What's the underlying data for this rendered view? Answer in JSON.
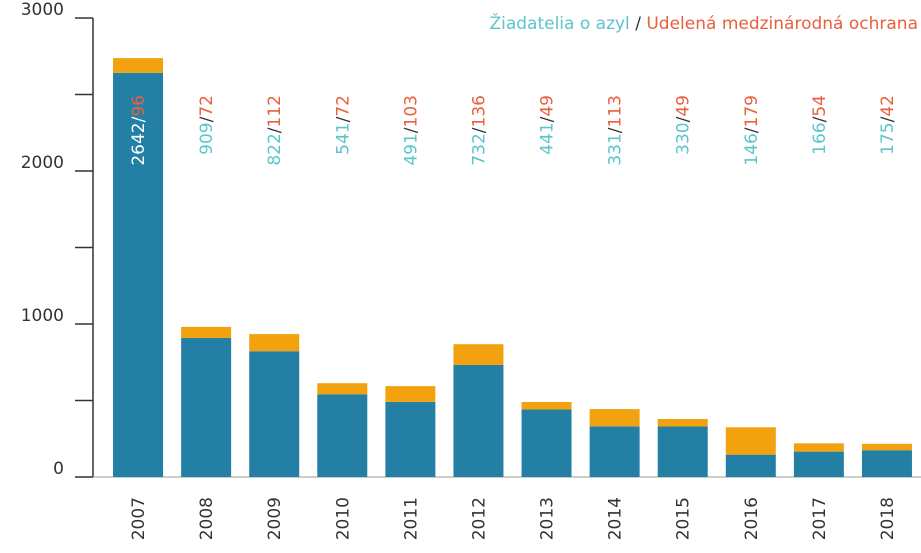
{
  "chart_data": {
    "type": "stacked_bar",
    "categories": [
      "2007",
      "2008",
      "2009",
      "2010",
      "2011",
      "2012",
      "2013",
      "2014",
      "2015",
      "2016",
      "2017",
      "2018"
    ],
    "series": [
      {
        "name": "Žiadatelia o azyl",
        "color": "#247fa5",
        "label_color": "#5cc5cc",
        "values": [
          2642,
          909,
          822,
          541,
          491,
          732,
          441,
          331,
          330,
          146,
          166,
          175
        ]
      },
      {
        "name": "Udelená medzinárodná ochrana",
        "color": "#f2a20f",
        "label_color": "#e8603c",
        "values": [
          96,
          72,
          112,
          72,
          103,
          136,
          49,
          113,
          49,
          179,
          54,
          42
        ]
      }
    ],
    "separator": "/",
    "ylim": [
      0,
      3000
    ],
    "yticks": [
      0,
      1000,
      2000,
      3000
    ],
    "yticks_minor": [
      500,
      1500,
      2500
    ]
  }
}
